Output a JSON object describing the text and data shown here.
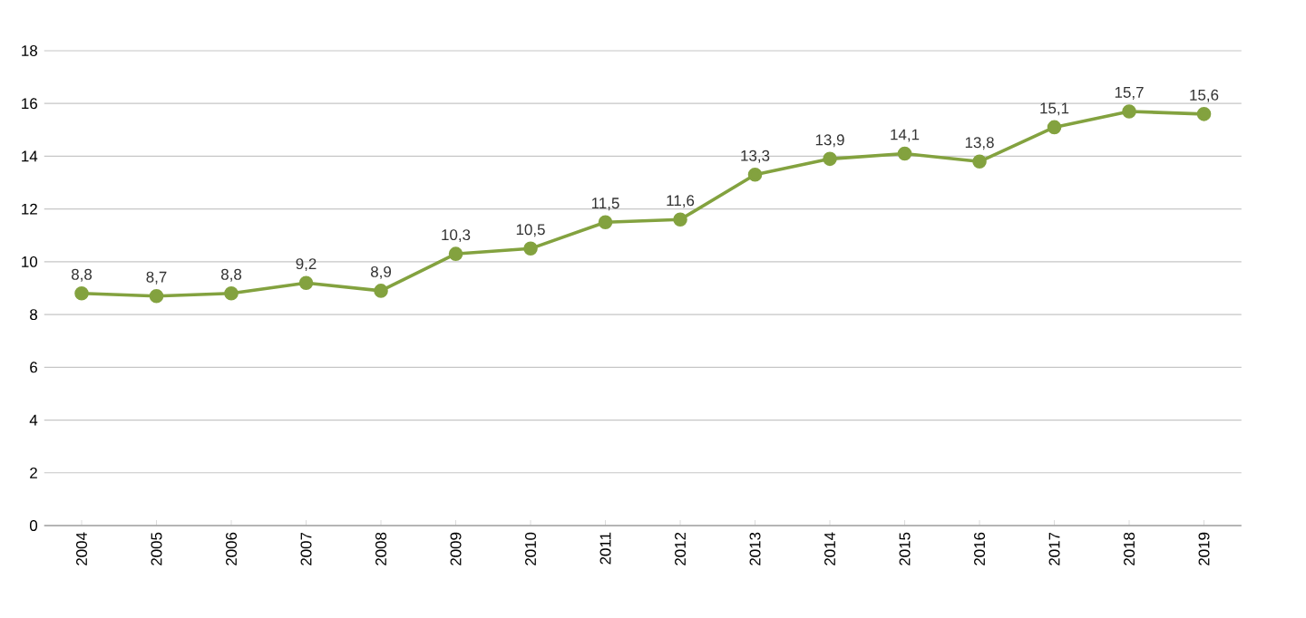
{
  "chart_data": {
    "type": "line",
    "categories": [
      "2004",
      "2005",
      "2006",
      "2007",
      "2008",
      "2009",
      "2010",
      "2011",
      "2012",
      "2013",
      "2014",
      "2015",
      "2016",
      "2017",
      "2018",
      "2019"
    ],
    "values": [
      8.8,
      8.7,
      8.8,
      9.2,
      8.9,
      10.3,
      10.5,
      11.5,
      11.6,
      13.3,
      13.9,
      14.1,
      13.8,
      15.1,
      15.7,
      15.6
    ],
    "value_labels": [
      "8,8",
      "8,7",
      "8,8",
      "9,2",
      "8,9",
      "10,3",
      "10,5",
      "11,5",
      "11,6",
      "13,3",
      "13,9",
      "14,1",
      "13,8",
      "15,1",
      "15,7",
      "15,6"
    ],
    "color": "#83a23f",
    "ylim": [
      0,
      18
    ],
    "yticks": [
      0,
      2,
      4,
      6,
      8,
      10,
      12,
      14,
      16,
      18
    ],
    "grid": "y",
    "marker": "circle",
    "line_style": "solid"
  }
}
